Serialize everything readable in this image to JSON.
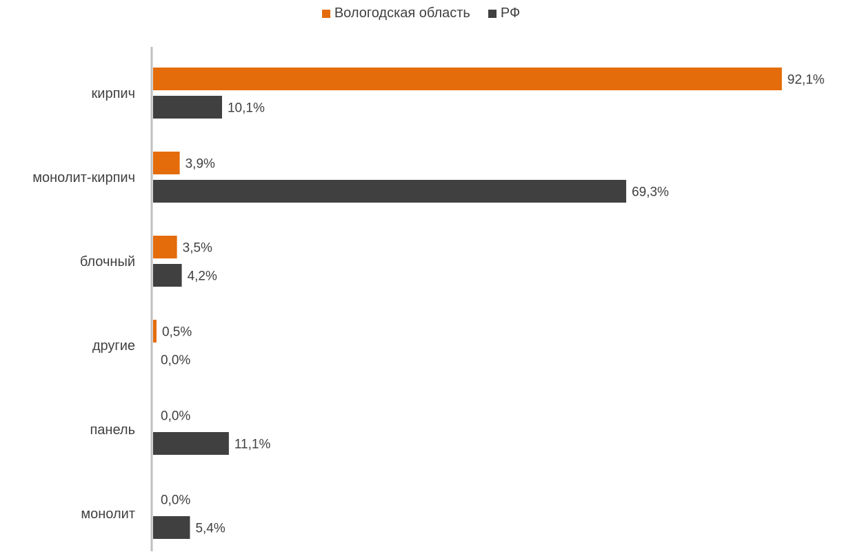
{
  "colors": {
    "series_0": "#E46C0A",
    "series_1": "#404040",
    "axis": "#BFBFBF",
    "text": "#404040"
  },
  "chart_data": {
    "type": "bar",
    "orientation": "horizontal",
    "categories": [
      "кирпич",
      "монолит-кирпич",
      "блочный",
      "другие",
      "панель",
      "монолит"
    ],
    "series": [
      {
        "name": "Вологодская область",
        "values": [
          92.1,
          3.9,
          3.5,
          0.5,
          0.0,
          0.0
        ],
        "labels": [
          "92,1%",
          "3,9%",
          "3,5%",
          "0,5%",
          "0,0%",
          "0,0%"
        ]
      },
      {
        "name": "РФ",
        "values": [
          10.1,
          69.3,
          4.2,
          0.0,
          11.1,
          5.4
        ],
        "labels": [
          "10,1%",
          "69,3%",
          "4,2%",
          "0,0%",
          "11,1%",
          "5,4%"
        ]
      }
    ],
    "legend_position": "top",
    "grid": false,
    "xlim": [
      0,
      100
    ]
  }
}
